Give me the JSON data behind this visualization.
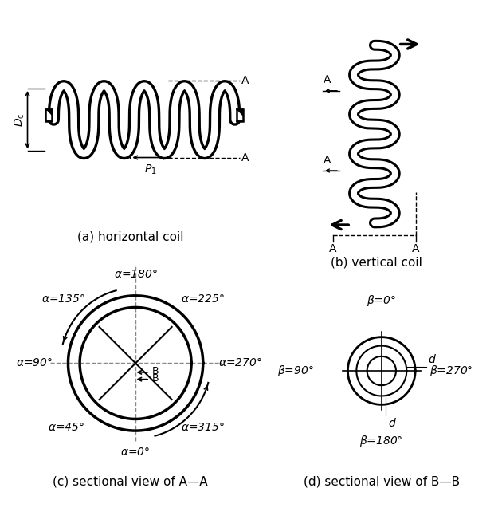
{
  "panel_a_label": "(a) horizontal coil",
  "panel_b_label": "(b) vertical coil",
  "panel_c_label": "(c) sectional view of A—A",
  "panel_d_label": "(d) sectional view of B—B",
  "bg_color": "#ffffff",
  "line_color": "#000000"
}
